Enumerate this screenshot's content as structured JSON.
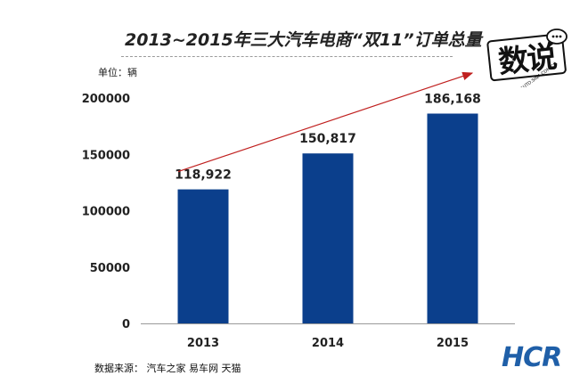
{
  "chart_data": {
    "type": "bar",
    "title": "2013~2015年三大汽车电商“双11”订单总量",
    "unit_label": "单位：辆",
    "categories": [
      "2013",
      "2014",
      "2015"
    ],
    "values": [
      118922,
      150817,
      186168
    ],
    "data_labels": [
      "118,922",
      "150,817",
      "186,168"
    ],
    "y_ticks": [
      "0",
      "50000",
      "100000",
      "150000",
      "200000"
    ],
    "y_tick_values": [
      0,
      50000,
      100000,
      150000,
      200000
    ],
    "ylim": [
      0,
      200000
    ],
    "grid": false,
    "bar_color": "#0b3f8c",
    "trend_arrow_color": "#c0201f",
    "source": "数据来源：  汽车之家   易车网   天猫"
  },
  "branding": {
    "logo_text": "数说",
    "logo_url_text": "AUTO.SINA.COM.CN",
    "corner_logo": "HCR",
    "corner_logo_color": "#1f5fa8"
  }
}
